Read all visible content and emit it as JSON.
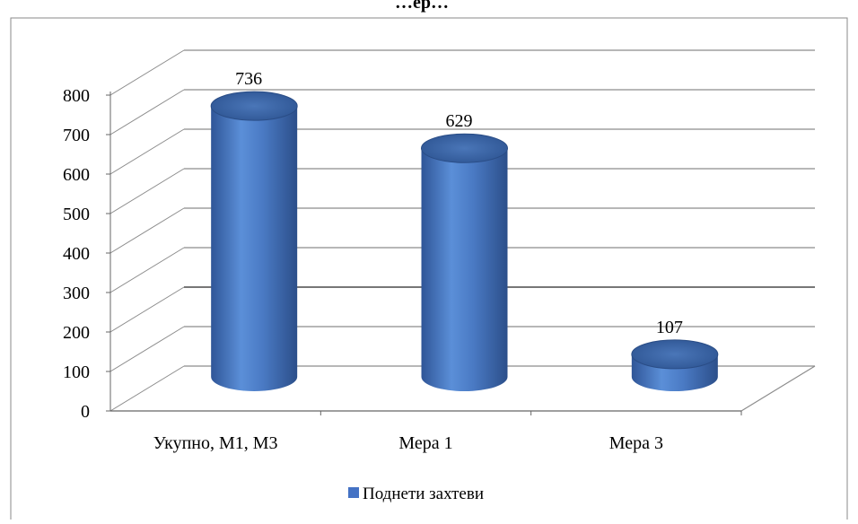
{
  "chart_data": {
    "type": "bar",
    "style": "3d-cylinder",
    "title_partial": "…ер…",
    "categories": [
      "Укупно, М1, М3",
      "Мера 1",
      "Мера 3"
    ],
    "series": [
      {
        "name": "Поднети захтеви",
        "values": [
          736,
          629,
          107
        ],
        "color": "#4472C4"
      }
    ],
    "data_labels": [
      "736",
      "629",
      "107"
    ],
    "y_ticks": [
      "0",
      "100",
      "200",
      "300",
      "400",
      "500",
      "600",
      "700",
      "800"
    ],
    "ylim": [
      0,
      800
    ],
    "grid": true,
    "legend_position": "bottom"
  }
}
